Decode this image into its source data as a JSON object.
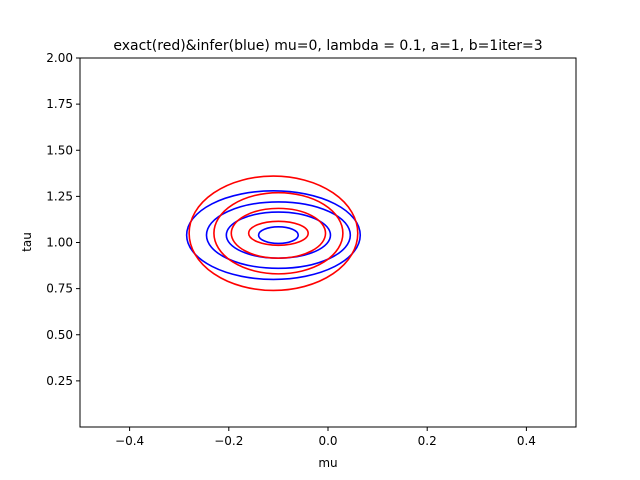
{
  "chart_data": {
    "type": "contour",
    "title": "exact(red)&infer(blue) mu=0, lambda = 0.1, a=1, b=1iter=3",
    "xlabel": "mu",
    "ylabel": "tau",
    "xlim": [
      -0.5,
      0.5
    ],
    "ylim": [
      0.0,
      2.0
    ],
    "xticks": [
      -0.4,
      -0.2,
      0.0,
      0.2,
      0.4
    ],
    "xtick_labels": [
      "−0.4",
      "−0.2",
      "0.0",
      "0.2",
      "0.4"
    ],
    "yticks": [
      0.25,
      0.5,
      0.75,
      1.0,
      1.25,
      1.5,
      1.75,
      2.0
    ],
    "ytick_labels": [
      "0.25",
      "0.50",
      "0.75",
      "1.00",
      "1.25",
      "1.50",
      "1.75",
      "2.00"
    ],
    "grid": false,
    "series": [
      {
        "color": "#0000ff",
        "contours": [
          {
            "cx": -0.1,
            "cy": 1.04,
            "rx": 0.04,
            "ry": 0.045
          },
          {
            "cx": -0.1,
            "cy": 1.04,
            "rx": 0.105,
            "ry": 0.125
          },
          {
            "cx": -0.1,
            "cy": 1.04,
            "rx": 0.145,
            "ry": 0.18
          },
          {
            "cx": -0.11,
            "cy": 1.04,
            "rx": 0.175,
            "ry": 0.24
          }
        ]
      },
      {
        "color": "#ff0000",
        "contours": [
          {
            "cx": -0.1,
            "cy": 1.05,
            "rx": 0.06,
            "ry": 0.065
          },
          {
            "cx": -0.1,
            "cy": 1.05,
            "rx": 0.095,
            "ry": 0.135
          },
          {
            "cx": -0.1,
            "cy": 1.05,
            "rx": 0.13,
            "ry": 0.22
          },
          {
            "cx": -0.11,
            "cy": 1.05,
            "rx": 0.17,
            "ry": 0.31
          }
        ]
      }
    ]
  }
}
